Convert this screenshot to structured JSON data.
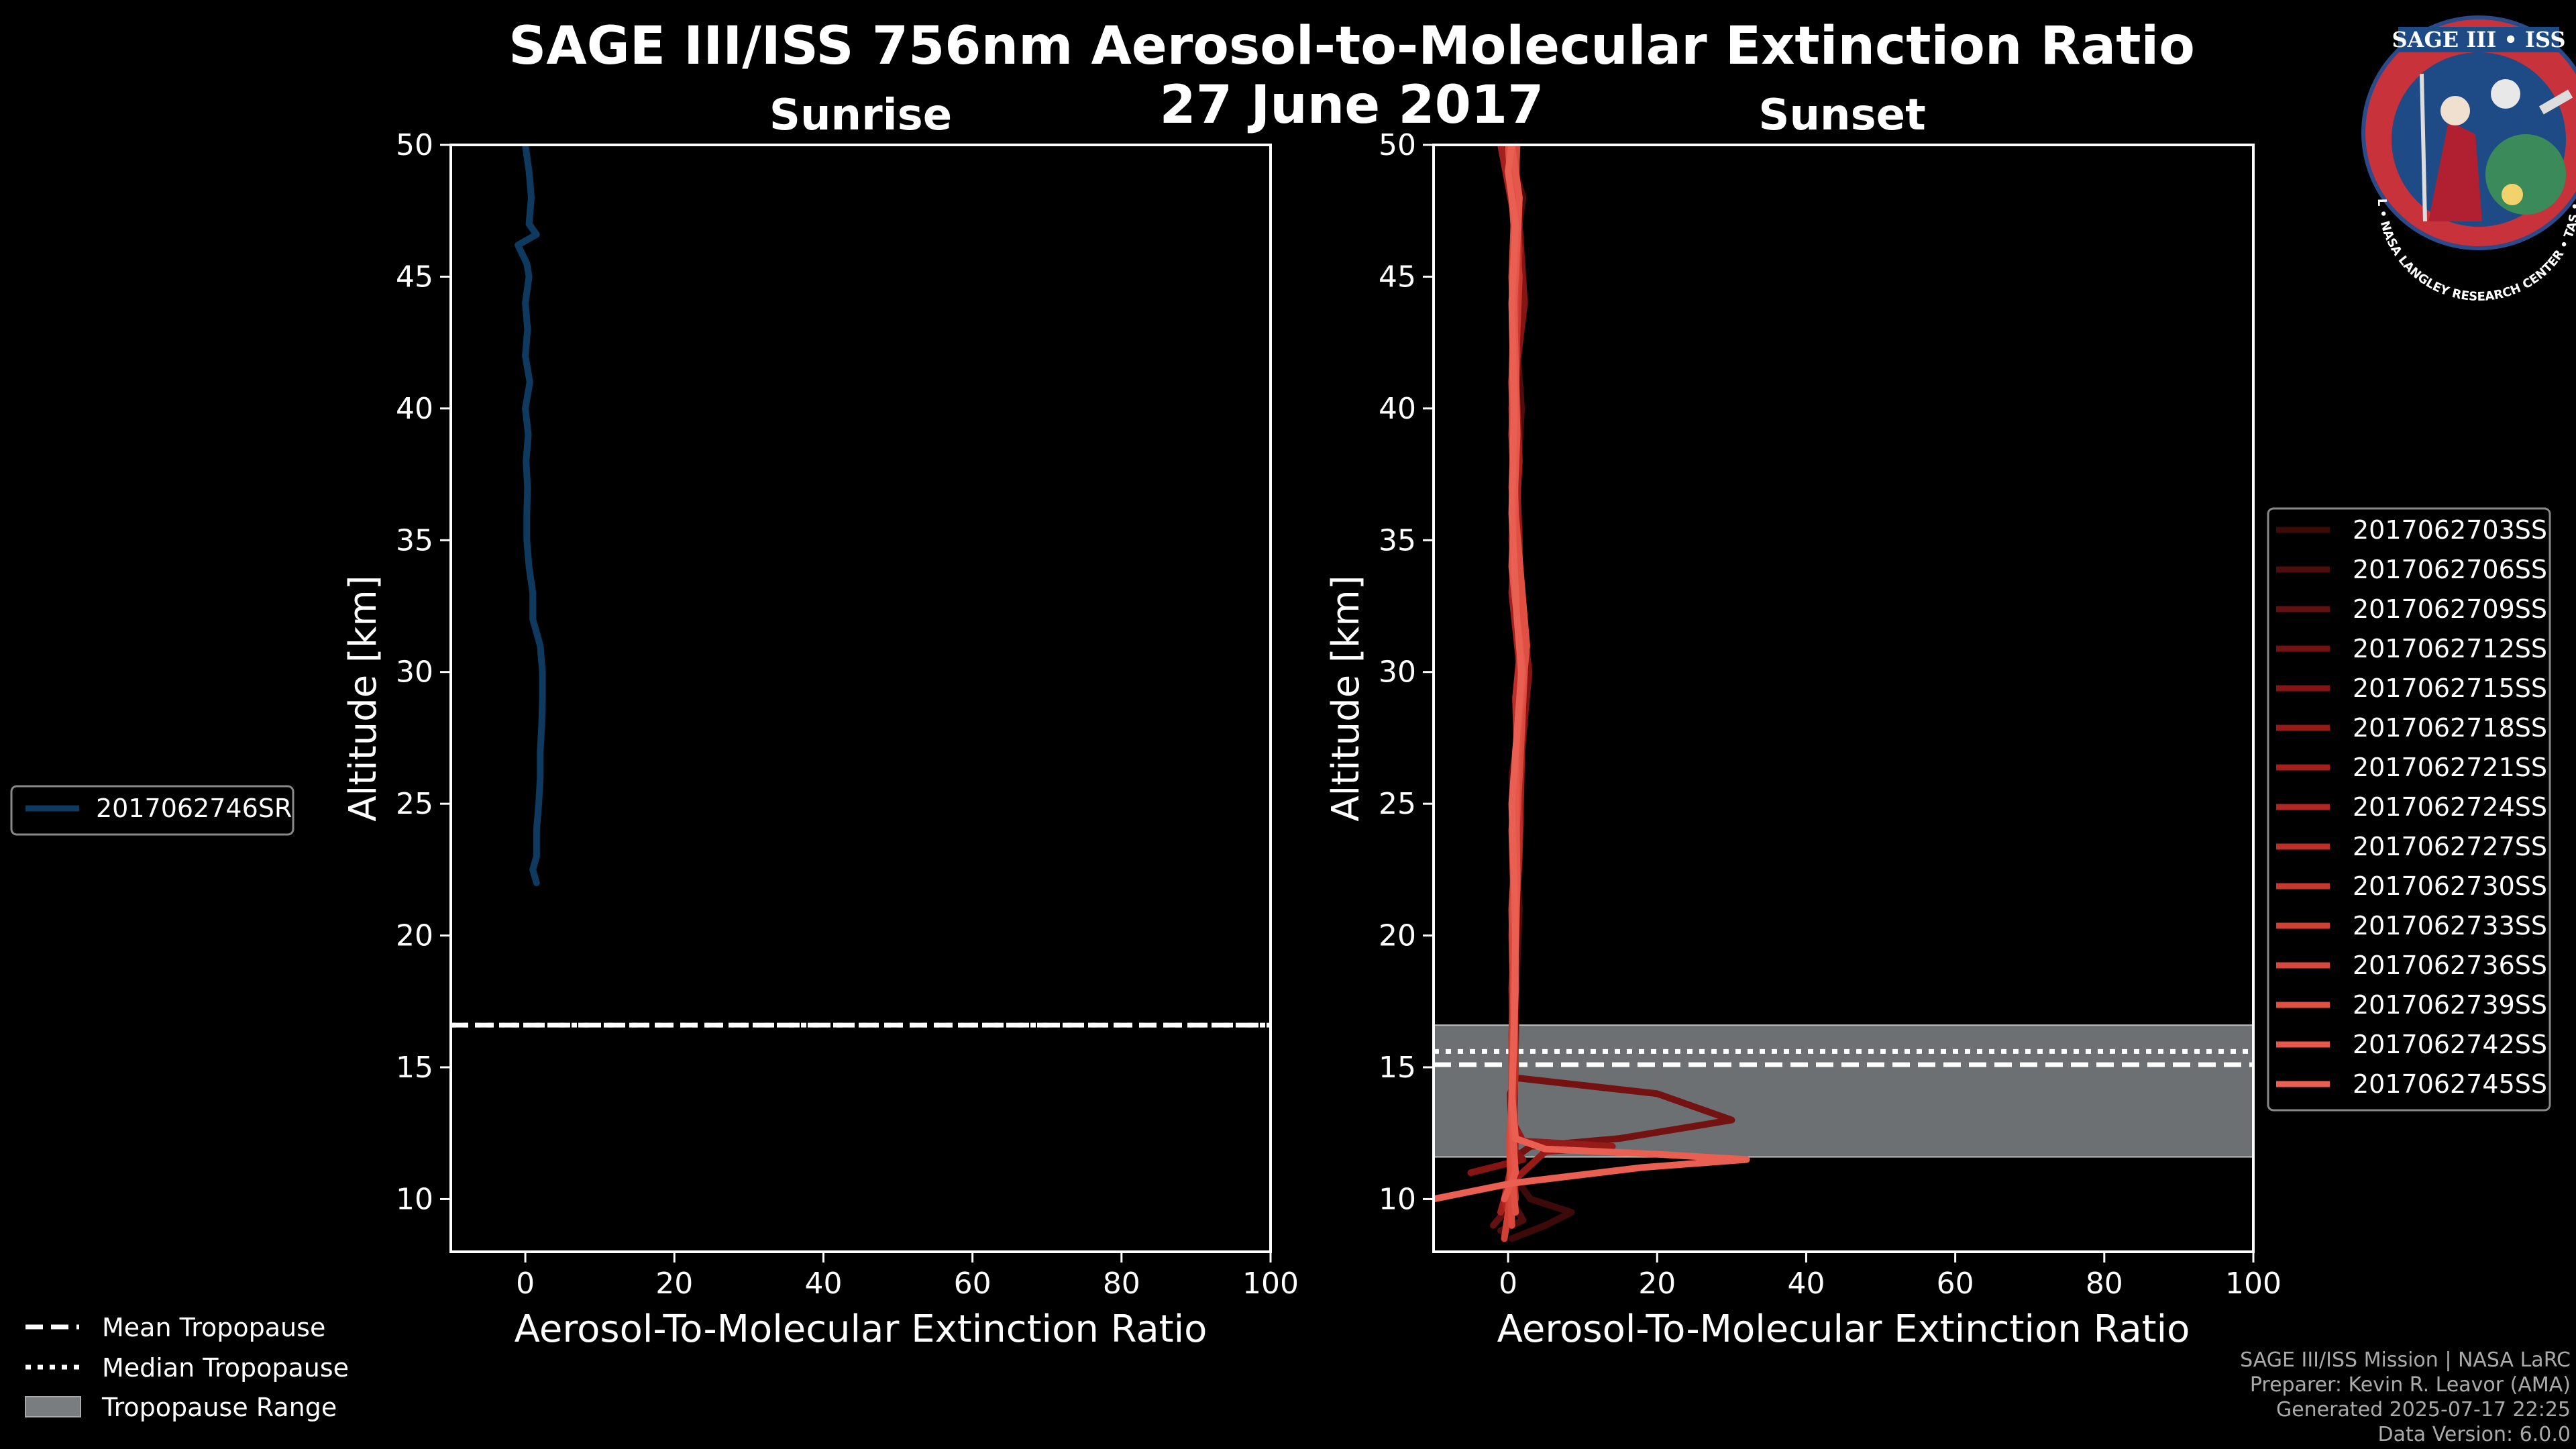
{
  "title_line1": "SAGE III/ISS 756nm Aerosol-to-Molecular Extinction Ratio",
  "title_line2": "27 June 2017",
  "logo": {
    "top_text": "SAGE III • ISS",
    "ring_text": "BALL • NASA LANGLEY RESEARCH CENTER • TAS • ESA"
  },
  "credits": [
    "SAGE III/ISS Mission | NASA LaRC",
    "Preparer: Kevin R. Leavor (AMA)",
    "Generated 2025-07-17 22:25",
    "Data Version: 6.0.0"
  ],
  "tropopause_legend": {
    "mean": "Mean Tropopause",
    "median": "Median Tropopause",
    "range": "Tropopause Range"
  },
  "chart_data": [
    {
      "type": "line",
      "title": "Sunrise",
      "xlabel": "Aerosol-To-Molecular Extinction Ratio",
      "ylabel": "Altitude [km]",
      "xlim": [
        -10,
        100
      ],
      "ylim": [
        8,
        50
      ],
      "xticks": [
        0,
        20,
        40,
        60,
        80,
        100
      ],
      "yticks": [
        10,
        15,
        20,
        25,
        30,
        35,
        40,
        45,
        50
      ],
      "legend_placement": "left",
      "tropopause": {
        "mean": 16.6,
        "median": 16.6,
        "range": [
          16.6,
          16.6
        ]
      },
      "series": [
        {
          "name": "2017062746SR",
          "color": "#0d3a5e",
          "points": [
            [
              1.5,
              22.0
            ],
            [
              1.0,
              22.5
            ],
            [
              1.5,
              23.0
            ],
            [
              1.5,
              24.0
            ],
            [
              1.8,
              25.0
            ],
            [
              2.0,
              26.0
            ],
            [
              2.0,
              27.0
            ],
            [
              2.2,
              28.0
            ],
            [
              2.3,
              29.0
            ],
            [
              2.3,
              30.0
            ],
            [
              2.0,
              31.0
            ],
            [
              1.0,
              32.0
            ],
            [
              1.0,
              33.0
            ],
            [
              0.5,
              34.0
            ],
            [
              0.2,
              35.0
            ],
            [
              0.2,
              36.0
            ],
            [
              0.3,
              37.0
            ],
            [
              0.1,
              38.0
            ],
            [
              0.4,
              39.0
            ],
            [
              0.0,
              40.0
            ],
            [
              0.6,
              41.0
            ],
            [
              0.0,
              42.0
            ],
            [
              0.3,
              43.0
            ],
            [
              0.0,
              44.0
            ],
            [
              0.5,
              45.0
            ],
            [
              0.2,
              45.5
            ],
            [
              -1.0,
              46.2
            ],
            [
              1.5,
              46.6
            ],
            [
              0.5,
              47.0
            ],
            [
              0.8,
              48.0
            ],
            [
              0.5,
              49.0
            ],
            [
              0.0,
              50.0
            ]
          ]
        }
      ]
    },
    {
      "type": "line",
      "title": "Sunset",
      "xlabel": "Aerosol-To-Molecular Extinction Ratio",
      "ylabel": "Altitude [km]",
      "xlim": [
        -10,
        100
      ],
      "ylim": [
        8,
        50
      ],
      "xticks": [
        0,
        20,
        40,
        60,
        80,
        100
      ],
      "yticks": [
        10,
        15,
        20,
        25,
        30,
        35,
        40,
        45,
        50
      ],
      "legend_placement": "right",
      "tropopause": {
        "mean": 15.1,
        "median": 15.6,
        "range": [
          11.6,
          16.6
        ]
      },
      "series": [
        {
          "name": "2017062703SS",
          "color": "#3d0a0a",
          "points": [
            [
              0.5,
              8.5
            ],
            [
              5.0,
              9.0
            ],
            [
              8.5,
              9.5
            ],
            [
              3.0,
              10.0
            ],
            [
              0.5,
              11.0
            ],
            [
              0.8,
              13.0
            ],
            [
              1.0,
              16.0
            ],
            [
              1.2,
              20.0
            ],
            [
              1.0,
              25.0
            ],
            [
              2.0,
              30.0
            ],
            [
              1.0,
              35.0
            ],
            [
              1.5,
              40.0
            ],
            [
              1.0,
              45.0
            ],
            [
              1.5,
              48.0
            ],
            [
              0.5,
              50.0
            ]
          ]
        },
        {
          "name": "2017062706SS",
          "color": "#500d0d",
          "points": [
            [
              -1.0,
              8.8
            ],
            [
              2.0,
              9.2
            ],
            [
              0.0,
              10.2
            ],
            [
              0.5,
              12.0
            ],
            [
              0.8,
              16.0
            ],
            [
              1.5,
              21.0
            ],
            [
              0.5,
              26.0
            ],
            [
              2.5,
              30.0
            ],
            [
              0.8,
              35.0
            ],
            [
              1.8,
              40.0
            ],
            [
              0.5,
              45.0
            ],
            [
              2.0,
              48.0
            ],
            [
              0.0,
              50.0
            ]
          ]
        },
        {
          "name": "2017062709SS",
          "color": "#621010",
          "points": [
            [
              -2.0,
              9.0
            ],
            [
              1.0,
              10.0
            ],
            [
              0.5,
              12.5
            ],
            [
              0.5,
              16.0
            ],
            [
              1.0,
              20.0
            ],
            [
              1.5,
              25.0
            ],
            [
              2.0,
              30.0
            ],
            [
              1.0,
              35.0
            ],
            [
              0.5,
              40.0
            ],
            [
              1.5,
              45.0
            ],
            [
              1.0,
              50.0
            ]
          ]
        },
        {
          "name": "2017062712SS",
          "color": "#741212",
          "points": [
            [
              0.5,
              12.0
            ],
            [
              0.3,
              14.0
            ],
            [
              1.0,
              14.6
            ],
            [
              20.0,
              14.0
            ],
            [
              30.0,
              13.0
            ],
            [
              15.0,
              12.3
            ],
            [
              3.0,
              12.0
            ],
            [
              0.5,
              11.5
            ],
            [
              0.5,
              16.0
            ],
            [
              0.8,
              20.0
            ],
            [
              1.2,
              25.0
            ],
            [
              2.2,
              30.0
            ],
            [
              0.5,
              35.0
            ],
            [
              1.0,
              40.0
            ],
            [
              1.8,
              45.0
            ],
            [
              0.5,
              50.0
            ]
          ]
        },
        {
          "name": "2017062715SS",
          "color": "#851515",
          "points": [
            [
              -5.0,
              11.0
            ],
            [
              2.0,
              11.5
            ],
            [
              0.5,
              12.0
            ],
            [
              0.5,
              16.0
            ],
            [
              1.0,
              21.0
            ],
            [
              1.5,
              26.0
            ],
            [
              2.8,
              30.0
            ],
            [
              1.2,
              34.0
            ],
            [
              0.5,
              40.0
            ],
            [
              2.2,
              44.0
            ],
            [
              0.8,
              50.0
            ]
          ]
        },
        {
          "name": "2017062718SS",
          "color": "#961a18",
          "points": [
            [
              0.0,
              10.5
            ],
            [
              5.0,
              11.8
            ],
            [
              14.0,
              12.0
            ],
            [
              2.0,
              12.2
            ],
            [
              0.5,
              13.0
            ],
            [
              0.8,
              16.0
            ],
            [
              0.5,
              20.0
            ],
            [
              1.0,
              25.0
            ],
            [
              1.8,
              30.0
            ],
            [
              1.5,
              35.0
            ],
            [
              0.8,
              40.0
            ],
            [
              1.2,
              45.0
            ],
            [
              0.5,
              50.0
            ]
          ]
        },
        {
          "name": "2017062721SS",
          "color": "#a3201c",
          "points": [
            [
              -1.0,
              9.5
            ],
            [
              0.5,
              11.0
            ],
            [
              0.8,
              14.0
            ],
            [
              0.5,
              18.0
            ],
            [
              1.5,
              23.0
            ],
            [
              2.0,
              29.0
            ],
            [
              0.5,
              33.0
            ],
            [
              1.5,
              38.0
            ],
            [
              0.8,
              43.0
            ],
            [
              1.0,
              47.0
            ],
            [
              -1.0,
              50.0
            ]
          ]
        },
        {
          "name": "2017062724SS",
          "color": "#b02720",
          "points": [
            [
              0.5,
              9.0
            ],
            [
              -0.5,
              10.0
            ],
            [
              1.0,
              12.0
            ],
            [
              0.5,
              16.0
            ],
            [
              0.8,
              21.0
            ],
            [
              1.2,
              27.0
            ],
            [
              2.5,
              31.0
            ],
            [
              0.8,
              36.0
            ],
            [
              0.5,
              41.0
            ],
            [
              1.5,
              46.0
            ],
            [
              0.5,
              50.0
            ]
          ]
        },
        {
          "name": "2017062727SS",
          "color": "#bc2f27",
          "points": [
            [
              1.0,
              10.0
            ],
            [
              0.5,
              12.0
            ],
            [
              1.0,
              15.0
            ],
            [
              0.8,
              19.0
            ],
            [
              1.5,
              24.0
            ],
            [
              1.0,
              29.0
            ],
            [
              2.0,
              32.0
            ],
            [
              0.5,
              37.0
            ],
            [
              1.2,
              42.0
            ],
            [
              0.8,
              47.0
            ],
            [
              1.0,
              50.0
            ]
          ]
        },
        {
          "name": "2017062730SS",
          "color": "#c6372d",
          "points": [
            [
              0.0,
              9.5
            ],
            [
              0.5,
              12.0
            ],
            [
              0.5,
              16.0
            ],
            [
              1.0,
              20.0
            ],
            [
              1.2,
              25.0
            ],
            [
              2.0,
              30.0
            ],
            [
              1.0,
              35.0
            ],
            [
              0.8,
              40.0
            ],
            [
              1.5,
              45.0
            ],
            [
              0.2,
              50.0
            ]
          ]
        },
        {
          "name": "2017062733SS",
          "color": "#d04034",
          "points": [
            [
              -0.5,
              8.5
            ],
            [
              0.8,
              11.0
            ],
            [
              0.5,
              15.0
            ],
            [
              1.0,
              19.0
            ],
            [
              0.5,
              24.0
            ],
            [
              1.8,
              29.0
            ],
            [
              1.2,
              34.0
            ],
            [
              0.5,
              39.0
            ],
            [
              1.0,
              44.0
            ],
            [
              1.5,
              48.0
            ],
            [
              0.5,
              50.0
            ]
          ]
        },
        {
          "name": "2017062736SS",
          "color": "#d8483b",
          "points": [
            [
              0.5,
              9.0
            ],
            [
              0.2,
              12.0
            ],
            [
              0.8,
              16.0
            ],
            [
              0.5,
              21.0
            ],
            [
              1.5,
              26.0
            ],
            [
              2.2,
              30.0
            ],
            [
              0.8,
              35.0
            ],
            [
              1.0,
              40.0
            ],
            [
              0.5,
              45.0
            ],
            [
              1.2,
              50.0
            ]
          ]
        },
        {
          "name": "2017062739SS",
          "color": "#df5042",
          "points": [
            [
              1.0,
              9.5
            ],
            [
              0.5,
              11.0
            ],
            [
              0.5,
              14.0
            ],
            [
              1.0,
              18.0
            ],
            [
              0.8,
              23.0
            ],
            [
              1.5,
              28.0
            ],
            [
              2.5,
              31.0
            ],
            [
              1.0,
              36.0
            ],
            [
              0.5,
              41.0
            ],
            [
              1.0,
              46.0
            ],
            [
              0.0,
              50.0
            ]
          ]
        },
        {
          "name": "2017062742SS",
          "color": "#e4574a",
          "points": [
            [
              -0.5,
              10.0
            ],
            [
              1.0,
              11.0
            ],
            [
              0.5,
              13.0
            ],
            [
              0.8,
              17.0
            ],
            [
              1.2,
              22.0
            ],
            [
              1.0,
              27.0
            ],
            [
              2.0,
              30.0
            ],
            [
              0.5,
              34.0
            ],
            [
              1.2,
              39.0
            ],
            [
              0.8,
              44.0
            ],
            [
              1.5,
              48.0
            ],
            [
              0.5,
              50.0
            ]
          ]
        },
        {
          "name": "2017062745SS",
          "color": "#e95f52",
          "points": [
            [
              -10.0,
              10.0
            ],
            [
              -3.0,
              10.4
            ],
            [
              0.5,
              10.6
            ],
            [
              18.0,
              11.2
            ],
            [
              32.0,
              11.5
            ],
            [
              20.0,
              11.7
            ],
            [
              5.0,
              11.9
            ],
            [
              1.0,
              12.3
            ],
            [
              0.5,
              14.0
            ],
            [
              0.8,
              16.0
            ],
            [
              1.0,
              20.0
            ],
            [
              0.5,
              25.0
            ],
            [
              1.8,
              30.0
            ],
            [
              1.2,
              32.0
            ],
            [
              0.5,
              36.0
            ],
            [
              0.8,
              40.0
            ],
            [
              0.5,
              44.0
            ],
            [
              1.0,
              47.0
            ],
            [
              0.0,
              49.0
            ],
            [
              0.5,
              50.0
            ]
          ]
        }
      ]
    }
  ]
}
